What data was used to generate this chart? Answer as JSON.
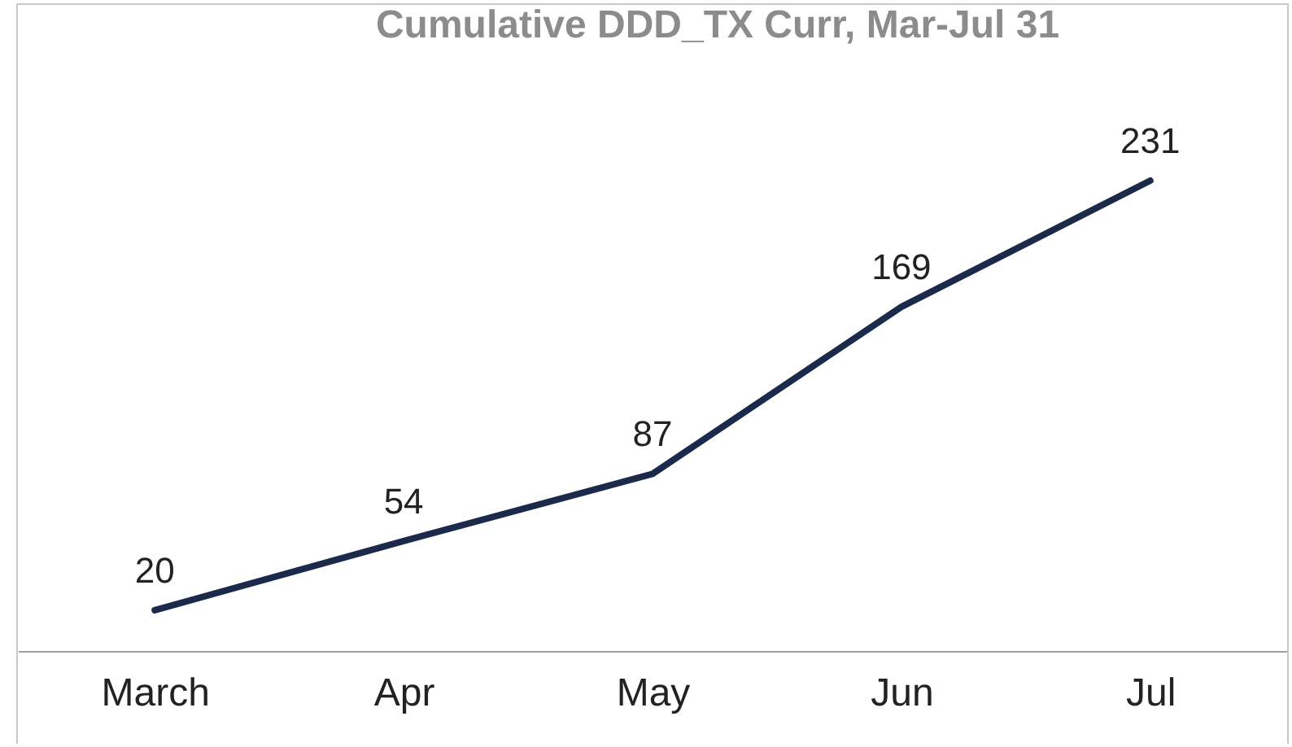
{
  "chart_data": {
    "type": "line",
    "title": "Cumulative DDD_TX Curr, Mar-Jul 31",
    "categories": [
      "March",
      "Apr",
      "May",
      "Jun",
      "Jul"
    ],
    "series": [
      {
        "color": "#1b2a4a",
        "values": [
          20,
          54,
          87,
          169,
          231
        ]
      }
    ],
    "data_labels": true
  }
}
